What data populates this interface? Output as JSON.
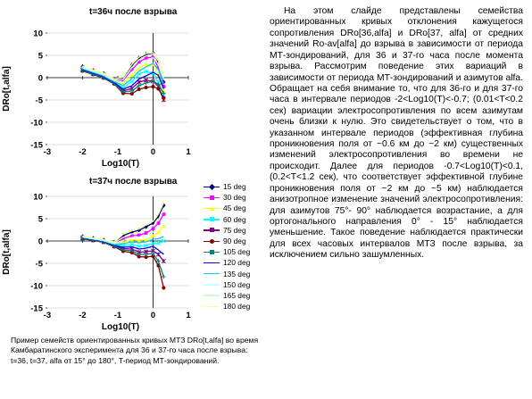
{
  "charts": [
    {
      "title": "t=36ч после взрыва"
    },
    {
      "title": "t=37ч после взрыва"
    }
  ],
  "chart_data": [
    {
      "type": "line",
      "title": "t=36ч после взрыва",
      "xlabel": "Log10(T)",
      "ylabel": "DRo[t,alfa]",
      "xlim": [
        -3,
        1
      ],
      "ylim": [
        -15,
        10
      ],
      "xticks": [
        -3,
        -2,
        -1,
        0,
        1
      ],
      "yticks": [
        10,
        5,
        0,
        -5,
        -10,
        -15
      ],
      "grid": "horizontal",
      "series_count": 12,
      "series": [
        {
          "x": [
            -2,
            -1.7,
            -1.4,
            -1.1,
            -0.85,
            -0.6,
            -0.4,
            -0.2,
            0,
            0.15,
            0.3
          ],
          "y": [
            2.5,
            1.6,
            0.9,
            -0.4,
            -0.2,
            2.8,
            4.4,
            5.2,
            5.5,
            3.5,
            -1.0
          ]
        },
        {
          "x": [
            -2,
            -1.7,
            -1.4,
            -1.1,
            -0.85,
            -0.6,
            -0.4,
            -0.2,
            0,
            0.15,
            0.3
          ],
          "y": [
            2.3,
            1.5,
            0.7,
            -0.6,
            -0.6,
            1.8,
            3.5,
            4.4,
            4.6,
            2.2,
            -2.0
          ]
        },
        {
          "x": [
            -2,
            -1.7,
            -1.4,
            -1.1,
            -0.85,
            -0.6,
            -0.4,
            -0.2,
            0,
            0.15,
            0.3
          ],
          "y": [
            2.1,
            1.3,
            0.5,
            -0.8,
            -1.4,
            0.6,
            2.2,
            3.0,
            3.0,
            0.6,
            -3.0
          ]
        },
        {
          "x": [
            -2,
            -1.7,
            -1.4,
            -1.1,
            -0.85,
            -0.6,
            -0.4,
            -0.2,
            0,
            0.15,
            0.3
          ],
          "y": [
            1.9,
            1.1,
            0.3,
            -1.0,
            -2.3,
            -0.9,
            0.8,
            1.4,
            1.0,
            -1.0,
            -4.0
          ]
        },
        {
          "x": [
            -2,
            -1.7,
            -1.4,
            -1.1,
            -0.85,
            -0.6,
            -0.4,
            -0.2,
            0,
            0.15,
            0.3
          ],
          "y": [
            1.7,
            0.9,
            0.1,
            -1.2,
            -3.0,
            -2.4,
            -1.0,
            -0.6,
            -0.8,
            -2.0,
            -5.0
          ]
        },
        {
          "x": [
            -2,
            -1.7,
            -1.4,
            -1.1,
            -0.85,
            -0.6,
            -0.4,
            -0.2,
            0,
            0.15,
            0.3
          ],
          "y": [
            1.5,
            0.7,
            -0.1,
            -1.4,
            -3.5,
            -3.6,
            -2.6,
            -2.2,
            -2.0,
            -2.5,
            -4.5
          ]
        },
        {
          "x": [
            -2,
            -1.7,
            -1.4,
            -1.1,
            -0.85,
            -0.6,
            -0.4,
            -0.2,
            0,
            0.15,
            0.3
          ],
          "y": [
            1.6,
            0.8,
            0.0,
            -1.3,
            -3.2,
            -3.0,
            -1.8,
            -1.2,
            -0.8,
            -1.5,
            -3.5
          ]
        },
        {
          "x": [
            -2,
            -1.7,
            -1.4,
            -1.1,
            -0.85,
            -0.6,
            -0.4,
            -0.2,
            0,
            0.15,
            0.3
          ],
          "y": [
            1.8,
            1.0,
            0.2,
            -1.1,
            -2.6,
            -1.8,
            -0.3,
            0.4,
            1.2,
            0.5,
            -2.5
          ]
        },
        {
          "x": [
            -2,
            -1.7,
            -1.4,
            -1.1,
            -0.85,
            -0.6,
            -0.4,
            -0.2,
            0,
            0.15,
            0.3
          ],
          "y": [
            2.0,
            1.2,
            0.4,
            -0.9,
            -1.8,
            -0.2,
            1.5,
            2.4,
            3.2,
            1.8,
            -1.5
          ]
        },
        {
          "x": [
            -2,
            -1.7,
            -1.4,
            -1.1,
            -0.85,
            -0.6,
            -0.4,
            -0.2,
            0,
            0.15,
            0.3
          ],
          "y": [
            2.2,
            1.4,
            0.6,
            -0.7,
            -1.0,
            1.2,
            2.9,
            3.8,
            4.5,
            3.0,
            -0.5
          ]
        },
        {
          "x": [
            -2,
            -1.7,
            -1.4,
            -1.1,
            -0.85,
            -0.6,
            -0.4,
            -0.2,
            0,
            0.15,
            0.3
          ],
          "y": [
            2.4,
            1.5,
            0.8,
            -0.5,
            -0.4,
            2.3,
            4.0,
            4.9,
            5.2,
            3.8,
            0.0
          ]
        },
        {
          "x": [
            -2,
            -1.7,
            -1.4,
            -1.1,
            -0.85,
            -0.6,
            -0.4,
            -0.2,
            0,
            0.15,
            0.3
          ],
          "y": [
            2.6,
            1.7,
            1.0,
            -0.3,
            0.1,
            3.0,
            4.6,
            5.4,
            5.6,
            4.2,
            0.5
          ]
        }
      ]
    },
    {
      "type": "line",
      "title": "t=37ч после взрыва",
      "xlabel": "Log10(T)",
      "ylabel": "DRo[t,alfa]",
      "xlim": [
        -3,
        1
      ],
      "ylim": [
        -15,
        10
      ],
      "xticks": [
        -3,
        -2,
        -1,
        0,
        1
      ],
      "yticks": [
        10,
        5,
        0,
        -5,
        -10,
        -15
      ],
      "grid": "horizontal",
      "series": [
        {
          "name": "15 deg",
          "x": [
            -2,
            -1.7,
            -1.4,
            -1.1,
            -0.85,
            -0.6,
            -0.4,
            -0.2,
            0,
            0.15,
            0.3
          ],
          "y": [
            1.0,
            0.6,
            0.2,
            -0.3,
            1.2,
            2.0,
            2.4,
            3.2,
            4.0,
            5.5,
            8.0
          ]
        },
        {
          "name": "30 deg",
          "x": [
            -2,
            -1.7,
            -1.4,
            -1.1,
            -0.85,
            -0.6,
            -0.4,
            -0.2,
            0,
            0.15,
            0.3
          ],
          "y": [
            0.9,
            0.5,
            0.1,
            -0.5,
            0.5,
            1.2,
            1.3,
            1.8,
            2.8,
            4.0,
            6.0
          ]
        },
        {
          "name": "45 deg",
          "x": [
            -2,
            -1.7,
            -1.4,
            -1.1,
            -0.85,
            -0.6,
            -0.4,
            -0.2,
            0,
            0.15,
            0.3
          ],
          "y": [
            0.8,
            0.4,
            0.0,
            -0.7,
            -0.3,
            0.3,
            0.1,
            0.3,
            1.2,
            2.0,
            3.5
          ]
        },
        {
          "name": "60 deg",
          "x": [
            -2,
            -1.7,
            -1.4,
            -1.1,
            -0.85,
            -0.6,
            -0.4,
            -0.2,
            0,
            0.15,
            0.3
          ],
          "y": [
            0.7,
            0.3,
            -0.1,
            -0.9,
            -1.0,
            -0.8,
            -1.2,
            -1.0,
            -0.5,
            -0.5,
            0.0
          ]
        },
        {
          "name": "75 deg",
          "x": [
            -2,
            -1.7,
            -1.4,
            -1.1,
            -0.85,
            -0.6,
            -0.4,
            -0.2,
            0,
            0.15,
            0.3
          ],
          "y": [
            0.6,
            0.2,
            -0.2,
            -1.1,
            -1.7,
            -1.8,
            -2.5,
            -2.4,
            -2.2,
            -3.0,
            -4.5
          ]
        },
        {
          "name": "90 deg",
          "x": [
            -2,
            -1.7,
            -1.4,
            -1.1,
            -0.85,
            -0.6,
            -0.4,
            -0.2,
            0,
            0.15,
            0.3
          ],
          "y": [
            0.5,
            0.1,
            -0.3,
            -1.3,
            -2.3,
            -2.6,
            -3.5,
            -3.6,
            -3.4,
            -5.5,
            -10.5
          ]
        },
        {
          "name": "105 deg",
          "x": [
            -2,
            -1.7,
            -1.4,
            -1.1,
            -0.85,
            -0.6,
            -0.4,
            -0.2,
            0,
            0.15,
            0.3
          ],
          "y": [
            0.6,
            0.2,
            -0.2,
            -1.2,
            -2.0,
            -2.2,
            -3.0,
            -3.0,
            -2.8,
            -4.5,
            -8.0
          ]
        },
        {
          "name": "120 deg",
          "x": [
            -2,
            -1.7,
            -1.4,
            -1.1,
            -0.85,
            -0.6,
            -0.4,
            -0.2,
            0,
            0.15,
            0.3
          ],
          "y": [
            0.7,
            0.3,
            -0.1,
            -1.0,
            -1.4,
            -1.3,
            -1.8,
            -1.6,
            -1.2,
            -2.0,
            -3.0
          ]
        },
        {
          "name": "135 deg",
          "x": [
            -2,
            -1.7,
            -1.4,
            -1.1,
            -0.85,
            -0.6,
            -0.4,
            -0.2,
            0,
            0.15,
            0.3
          ],
          "y": [
            0.8,
            0.4,
            0.0,
            -0.8,
            -0.6,
            -0.2,
            -0.4,
            -0.2,
            0.4,
            0.5,
            1.0
          ]
        },
        {
          "name": "150 deg",
          "x": [
            -2,
            -1.7,
            -1.4,
            -1.1,
            -0.85,
            -0.6,
            -0.4,
            -0.2,
            0,
            0.15,
            0.3
          ],
          "y": [
            0.9,
            0.5,
            0.1,
            -0.6,
            0.1,
            0.8,
            0.9,
            1.2,
            2.0,
            3.0,
            4.5
          ]
        },
        {
          "name": "165 deg",
          "x": [
            -2,
            -1.7,
            -1.4,
            -1.1,
            -0.85,
            -0.6,
            -0.4,
            -0.2,
            0,
            0.15,
            0.3
          ],
          "y": [
            1.0,
            0.6,
            0.2,
            -0.4,
            0.8,
            1.6,
            1.9,
            2.6,
            3.4,
            4.8,
            7.0
          ]
        },
        {
          "name": "180 deg",
          "x": [
            -2,
            -1.7,
            -1.4,
            -1.1,
            -0.85,
            -0.6,
            -0.4,
            -0.2,
            0,
            0.15,
            0.3
          ],
          "y": [
            1.1,
            0.7,
            0.3,
            -0.2,
            1.5,
            2.3,
            2.7,
            3.6,
            4.4,
            6.0,
            8.5
          ]
        }
      ]
    }
  ],
  "legend": {
    "placement": "right",
    "items": [
      {
        "label": "15 deg",
        "color": "#000080",
        "marker": "diamond"
      },
      {
        "label": "30 deg",
        "color": "#ff00ff",
        "marker": "square"
      },
      {
        "label": "45 deg",
        "color": "#ffff00",
        "marker": "triangle"
      },
      {
        "label": "60 deg",
        "color": "#00ffff",
        "marker": "x"
      },
      {
        "label": "75 deg",
        "color": "#800080",
        "marker": "asterisk"
      },
      {
        "label": "90 deg",
        "color": "#800000",
        "marker": "circle"
      },
      {
        "label": "105 deg",
        "color": "#008080",
        "marker": "plus"
      },
      {
        "label": "120 deg",
        "color": "#0000ff",
        "marker": "line"
      },
      {
        "label": "135 deg",
        "color": "#00ccff",
        "marker": "line"
      },
      {
        "label": "150 deg",
        "color": "#ccffff",
        "marker": "line"
      },
      {
        "label": "165 deg",
        "color": "#ccffcc",
        "marker": "line"
      },
      {
        "label": "180 deg",
        "color": "#ffff99",
        "marker": "line"
      }
    ]
  },
  "caption": "Пример семейств ориентированных кривых МТЗ DRo[t,alfa] во время Камбаратинского эксперимента для 36 и 37-го часа после взрыва: t=36, t=37, alfa от 15° до 180°, T-период МТ-зондирований.",
  "description": "На этом слайде представлены семейства ориентированных кривых отклонения кажущегося сопротивления DRo[36,alfa] и DRo[37, alfa] от средних значений Ro-av[alfa] до взрыва в зависимости от периода МТ-зондирований, для 36 и 37-го часа после момента взрыва. Рассмотрим поведение этих вариаций в зависимости от периода МТ-зондирований и азимутов alfa. Обращает на себя внимание то, что для 36-го и для 37-го часа в интервале периодов -2<Log10(T)<-0.7; (0.01<T<0.2 сек) вариации электросопротивления по всем азимутам очень близки к нулю. Это свидетельствует о том, что в указанном интервале периодов (эффективная глубина проникновения поля от ~0.6 км до ~2 км) существенных изменений электросопротивления во времени не происходит. Далее для периодов -0.7<Log10(T)<0.1, (0.2<T<1.2 сек), что соответствует эффективной глубине проникновения поля от ~2 км до ~5 км) наблюдается анизотропное изменение значений электросопротивления: для азимутов 75°- 90° наблюдается возрастание, а для ортогонального направления 0° - 15° наблюдается уменьшение. Такое поведение наблюдается практически для всех часовых интервалов МТЗ после взрыва, за исключением сильно зашумленных."
}
